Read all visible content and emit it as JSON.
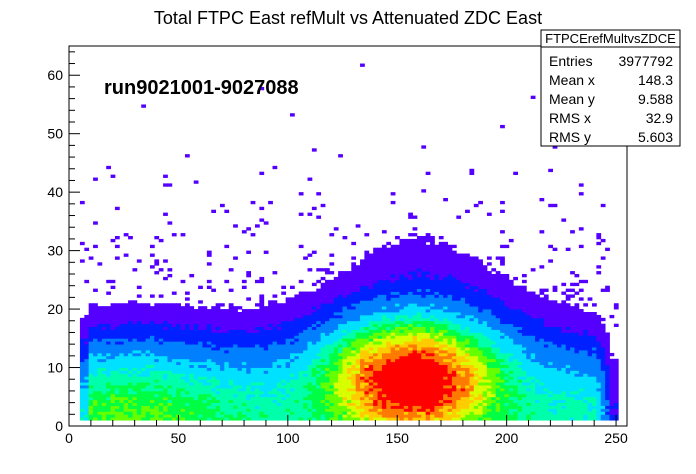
{
  "chart_data": {
    "type": "heatmap",
    "title": "Total FTPC East refMult vs Attenuated  ZDC East",
    "annotation": "run9021001-9027088",
    "xlim": [
      0,
      255
    ],
    "ylim": [
      0,
      65
    ],
    "x_ticks": [
      {
        "value": 0,
        "label": "0"
      },
      {
        "value": 50,
        "label": "50"
      },
      {
        "value": 100,
        "label": "100"
      },
      {
        "value": 150,
        "label": "150"
      },
      {
        "value": 200,
        "label": "200"
      },
      {
        "value": 250,
        "label": "250"
      }
    ],
    "y_ticks": [
      {
        "value": 0,
        "label": "0"
      },
      {
        "value": 10,
        "label": "10"
      },
      {
        "value": 20,
        "label": "20"
      },
      {
        "value": 30,
        "label": "30"
      },
      {
        "value": 40,
        "label": "40"
      },
      {
        "value": 50,
        "label": "50"
      },
      {
        "value": 60,
        "label": "60"
      }
    ],
    "x_data_range": [
      5,
      250
    ],
    "peak": {
      "x": 157,
      "y": 8
    },
    "colors": [
      "#ff0000",
      "#ff7a00",
      "#ffcc00",
      "#d8ff00",
      "#66ff00",
      "#00ff44",
      "#00ffaa",
      "#00e0ff",
      "#0080ff",
      "#0020ff",
      "#5500ff"
    ],
    "stats": {
      "title": "FTPCErefMultvsZDCE",
      "rows": [
        {
          "label": "Entries",
          "value": "3977792"
        },
        {
          "label": "Mean x",
          "value": "148.3"
        },
        {
          "label": "Mean y",
          "value": "9.588"
        },
        {
          "label": "RMS x",
          "value": "32.9"
        },
        {
          "label": "RMS y",
          "value": "5.603"
        }
      ]
    }
  }
}
